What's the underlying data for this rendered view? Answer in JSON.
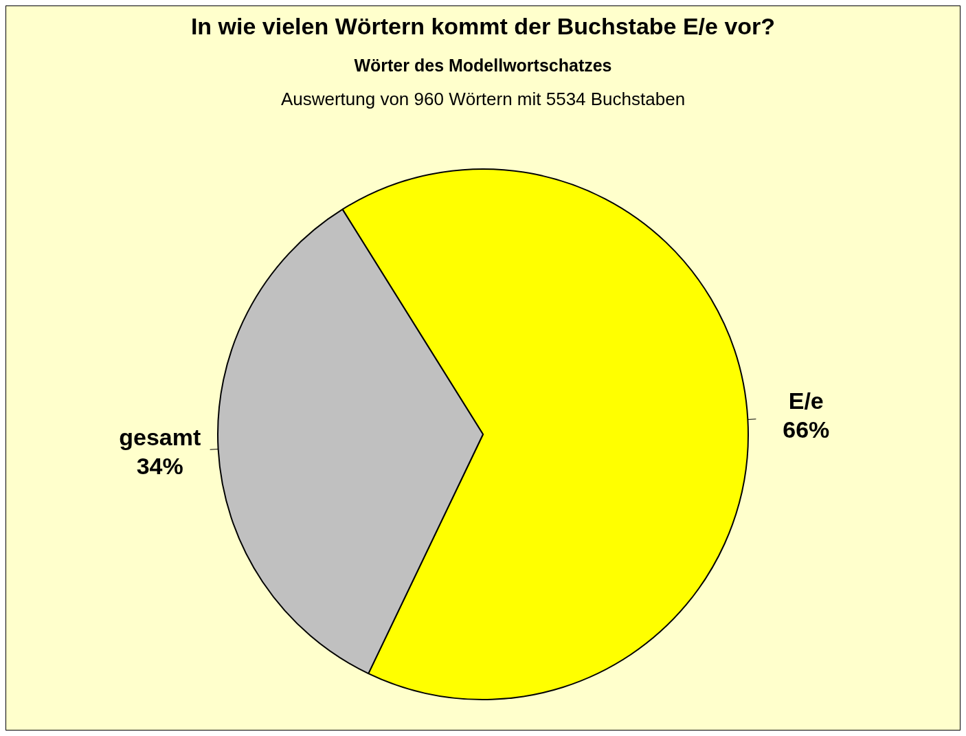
{
  "chart_data": {
    "type": "pie",
    "title": "In wie vielen Wörtern kommt der Buchstabe E/e vor?",
    "subtitle": "Wörter des Modellwortschatzes",
    "annotations": [
      "Auswertung von 960 Wörtern mit 5534 Buchstaben"
    ],
    "categories": [
      "E/e",
      "gesamt"
    ],
    "values": [
      66,
      34
    ],
    "value_labels": [
      "66%",
      "34%"
    ],
    "colors": [
      "#ffff00",
      "#c0c0c0"
    ],
    "legend": false
  }
}
